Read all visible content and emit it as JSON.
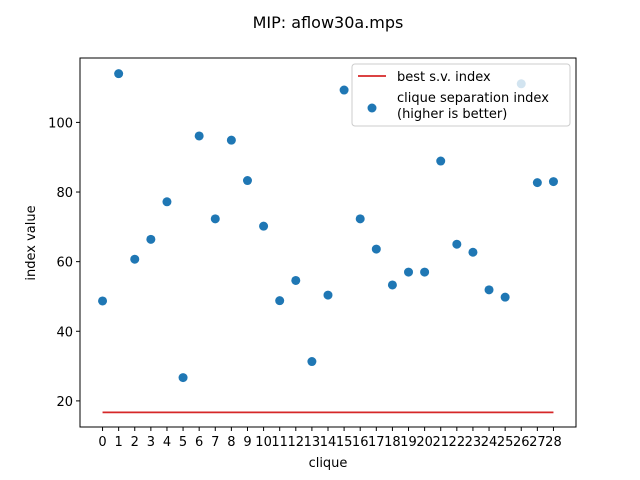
{
  "chart_data": {
    "type": "scatter",
    "title": "MIP: aflow30a.mps",
    "xlabel": "clique",
    "ylabel": "index value",
    "xlim": [
      -1.4,
      29.4
    ],
    "ylim": [
      12.5,
      118.5
    ],
    "yticks": [
      20,
      40,
      60,
      80,
      100
    ],
    "x": [
      0,
      1,
      2,
      3,
      4,
      5,
      6,
      7,
      8,
      9,
      10,
      11,
      12,
      13,
      14,
      15,
      16,
      17,
      18,
      19,
      20,
      21,
      22,
      23,
      24,
      25,
      26,
      27,
      28
    ],
    "xtick_labels": [
      "0",
      "1",
      "2",
      "3",
      "4",
      "5",
      "6",
      "7",
      "8",
      "9",
      "10",
      "11",
      "12",
      "13",
      "14",
      "15",
      "16",
      "17",
      "18",
      "19",
      "20",
      "21",
      "22",
      "23",
      "24",
      "25",
      "26",
      "27",
      "28"
    ],
    "series": [
      {
        "name": "clique separation index\n(higher is better)",
        "kind": "scatter",
        "color": "#1f77b4",
        "values": [
          48.7,
          114.0,
          60.7,
          66.4,
          77.2,
          26.7,
          96.1,
          72.3,
          94.9,
          83.3,
          70.2,
          48.8,
          54.6,
          31.3,
          50.4,
          109.3,
          72.3,
          63.6,
          53.3,
          57.0,
          57.0,
          88.9,
          65.0,
          62.7,
          51.9,
          49.8,
          111.1,
          82.7,
          83.0
        ]
      },
      {
        "name": "best s.v. index",
        "kind": "line",
        "color": "#d62728",
        "y": 16.7
      }
    ],
    "legend": {
      "placement": "top-right",
      "line_label": "best s.v. index",
      "point_label_line1": "clique separation index",
      "point_label_line2": "(higher is better)"
    }
  }
}
